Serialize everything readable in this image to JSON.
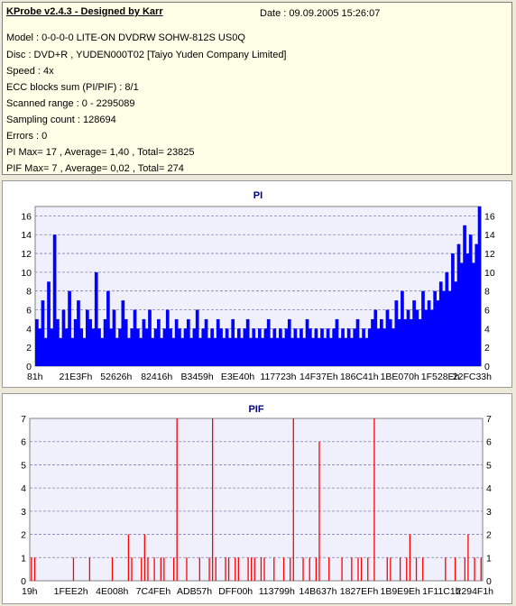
{
  "info": {
    "title": "KProbe v2.4.3 - Designed by Karr",
    "date": "Date : 09.09.2005 15:26:07",
    "lines": [
      "Model : 0-0-0-0 LITE-ON DVDRW SOHW-812S  US0Q",
      "Disc : DVD+R , YUDEN000T02 [Taiyo Yuden Company Limited]",
      "Speed : 4x",
      "ECC blocks sum (PI/PIF) : 8/1",
      "Scanned range : 0 - 2295089",
      "Sampling count : 128694",
      "Errors : 0",
      "PI Max= 17 , Average= 1,40 , Total= 23825",
      "PIF Max= 7 , Average= 0,02 , Total= 274"
    ]
  },
  "chart_data": [
    {
      "type": "bar",
      "title": "PI",
      "color": "#0000ff",
      "title_color": "#000080",
      "ylim": [
        0,
        17
      ],
      "yticks": [
        0,
        2,
        4,
        6,
        8,
        10,
        12,
        14,
        16
      ],
      "xtick_labels": [
        "81h",
        "21E3Fh",
        "52626h",
        "82416h",
        "B3459h",
        "E3E40h",
        "117723h",
        "14F37Eh",
        "186C41h",
        "1BE070h",
        "1F528Eh",
        "22FC33h"
      ],
      "grid": true,
      "values": [
        5,
        4,
        7,
        3,
        9,
        4,
        14,
        5,
        3,
        6,
        4,
        8,
        3,
        5,
        7,
        4,
        3,
        6,
        5,
        4,
        10,
        4,
        3,
        5,
        8,
        4,
        6,
        3,
        4,
        7,
        5,
        3,
        4,
        6,
        4,
        3,
        5,
        4,
        6,
        3,
        4,
        5,
        3,
        4,
        6,
        4,
        3,
        5,
        4,
        3,
        4,
        5,
        3,
        4,
        6,
        3,
        4,
        5,
        3,
        4,
        3,
        5,
        4,
        3,
        4,
        3,
        5,
        3,
        4,
        3,
        4,
        5,
        3,
        4,
        3,
        4,
        3,
        4,
        5,
        3,
        4,
        3,
        4,
        3,
        4,
        5,
        3,
        4,
        3,
        4,
        3,
        5,
        4,
        3,
        4,
        3,
        4,
        3,
        4,
        3,
        4,
        5,
        3,
        4,
        3,
        4,
        3,
        4,
        5,
        3,
        4,
        3,
        4,
        5,
        6,
        4,
        5,
        4,
        6,
        5,
        4,
        7,
        5,
        8,
        5,
        6,
        5,
        7,
        6,
        5,
        8,
        6,
        7,
        6,
        8,
        7,
        9,
        8,
        10,
        8,
        12,
        9,
        13,
        11,
        15,
        12,
        14,
        11,
        13,
        17
      ]
    },
    {
      "type": "bar",
      "title": "PIF",
      "color": "#ff0000",
      "title_color": "#000080",
      "ylim": [
        0,
        7
      ],
      "yticks": [
        0,
        1,
        2,
        3,
        4,
        5,
        6,
        7
      ],
      "xtick_labels": [
        "19h",
        "1FEE2h",
        "4E008h",
        "7C4FEh",
        "ADB57h",
        "DFF00h",
        "113799h",
        "14B637h",
        "1827EFh",
        "1B9E9Eh",
        "1F11C1h",
        "2294F1h"
      ],
      "grid": true,
      "values": [
        1,
        1,
        0,
        0,
        0,
        0,
        0,
        0,
        0,
        0,
        0,
        0,
        0,
        1,
        0,
        0,
        0,
        0,
        1,
        0,
        0,
        0,
        0,
        0,
        0,
        1,
        0,
        0,
        0,
        0,
        2,
        1,
        0,
        0,
        1,
        2,
        1,
        0,
        1,
        0,
        1,
        1,
        0,
        0,
        1,
        7,
        0,
        0,
        1,
        0,
        0,
        0,
        1,
        0,
        0,
        1,
        7,
        1,
        0,
        0,
        1,
        1,
        0,
        1,
        1,
        0,
        0,
        1,
        1,
        1,
        0,
        1,
        1,
        0,
        0,
        1,
        0,
        0,
        1,
        0,
        1,
        7,
        0,
        0,
        1,
        0,
        1,
        0,
        1,
        6,
        0,
        0,
        1,
        0,
        0,
        0,
        1,
        0,
        0,
        1,
        0,
        1,
        1,
        0,
        1,
        0,
        7,
        0,
        0,
        0,
        1,
        1,
        0,
        0,
        1,
        0,
        1,
        2,
        0,
        1,
        0,
        1,
        0,
        0,
        0,
        0,
        0,
        0,
        1,
        0,
        0,
        1,
        0,
        0,
        1,
        2,
        0,
        1,
        0,
        1
      ]
    }
  ]
}
